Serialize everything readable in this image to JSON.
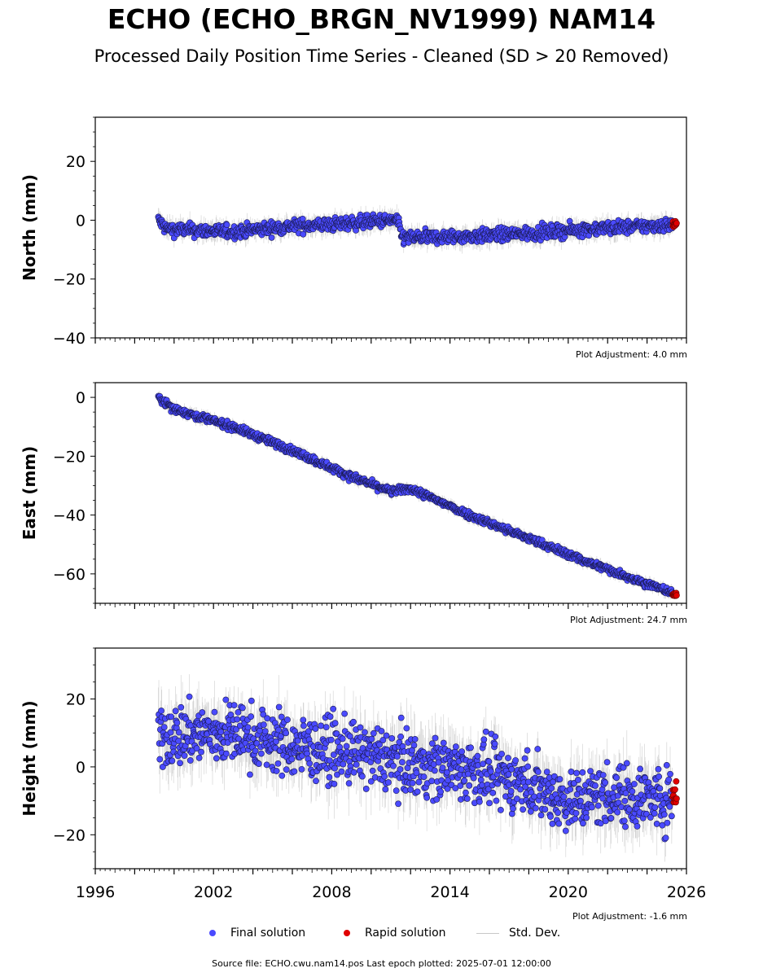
{
  "header": {
    "title": "ECHO (ECHO_BRGN_NV1999) NAM14",
    "subtitle": "Processed Daily Position Time Series - Cleaned (SD > 20 Removed)"
  },
  "legend": {
    "final": "Final solution",
    "rapid": "Rapid solution",
    "std": "Std. Dev."
  },
  "footer": {
    "source": "Source file: ECHO.cwu.nam14.pos  Last epoch plotted: 2025-07-01 12:00:00"
  },
  "colors": {
    "final": "#4a4aff",
    "rapid": "#e00000",
    "std": "#b4b4b4"
  },
  "chart_data": [
    {
      "type": "scatter",
      "ylabel": "North (mm)",
      "adjustment": "Plot Adjustment: 4.0 mm",
      "xlim": [
        1996,
        2026
      ],
      "ylim": [
        -40,
        35
      ],
      "yticks": [
        -40,
        -20,
        0,
        20
      ],
      "xticks": [],
      "trend": [
        [
          1999.2,
          0
        ],
        [
          1999.6,
          -3
        ],
        [
          2003,
          -4
        ],
        [
          2006,
          -2
        ],
        [
          2008,
          -1.5
        ],
        [
          2010,
          -0.5
        ],
        [
          2011.3,
          0
        ],
        [
          2011.6,
          -6
        ],
        [
          2015,
          -5.5
        ],
        [
          2018,
          -4.5
        ],
        [
          2021,
          -3
        ],
        [
          2025.5,
          -1.5
        ]
      ],
      "noise": 1.6,
      "std_spread": 3,
      "final_end": 2025.3,
      "rapid_range": [
        2025.3,
        2025.5
      ],
      "rapid_level": -1.5
    },
    {
      "type": "scatter",
      "ylabel": "East (mm)",
      "adjustment": "Plot Adjustment: 24.7 mm",
      "xlim": [
        1996,
        2026
      ],
      "ylim": [
        -70,
        5
      ],
      "yticks": [
        -60,
        -40,
        -20,
        0
      ],
      "xticks": [],
      "trend": [
        [
          1999.2,
          0
        ],
        [
          2000,
          -4
        ],
        [
          2003,
          -10
        ],
        [
          2006,
          -18
        ],
        [
          2009,
          -27
        ],
        [
          2011,
          -32
        ],
        [
          2012,
          -31
        ],
        [
          2015,
          -40
        ],
        [
          2018,
          -48
        ],
        [
          2021,
          -56
        ],
        [
          2025.5,
          -67
        ]
      ],
      "noise": 0.9,
      "std_spread": 1.8,
      "final_end": 2025.3,
      "rapid_range": [
        2025.3,
        2025.5
      ],
      "rapid_level": -67
    },
    {
      "type": "scatter",
      "ylabel": "Height (mm)",
      "adjustment": "Plot Adjustment: -1.6 mm",
      "xlim": [
        1996,
        2026
      ],
      "ylim": [
        -30,
        35
      ],
      "yticks": [
        -20,
        0,
        20
      ],
      "xticks": [
        "1996",
        "2002",
        "2008",
        "2014",
        "2020",
        "2026"
      ],
      "trend": [
        [
          1999.2,
          9
        ],
        [
          2003,
          10
        ],
        [
          2006,
          6
        ],
        [
          2009,
          4
        ],
        [
          2012,
          1
        ],
        [
          2015,
          -1
        ],
        [
          2018,
          -5
        ],
        [
          2020,
          -10
        ],
        [
          2022,
          -8
        ],
        [
          2025.5,
          -10
        ]
      ],
      "noise": 6.5,
      "std_spread": 8,
      "final_end": 2025.3,
      "rapid_range": [
        2025.3,
        2025.5
      ],
      "rapid_level": -8
    }
  ]
}
